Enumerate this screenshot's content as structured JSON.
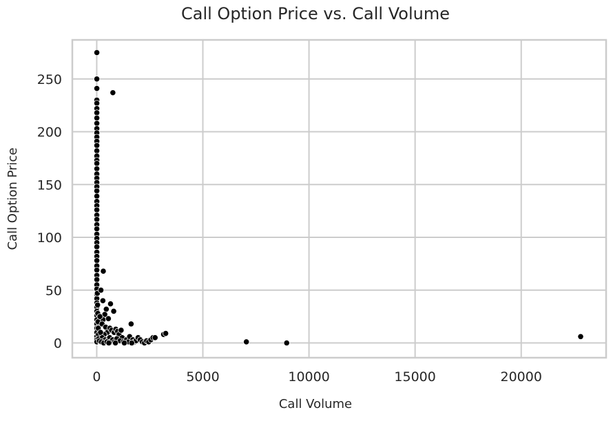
{
  "chart_data": {
    "type": "scatter",
    "title": "Call Option Price vs. Call Volume",
    "xlabel": "Call Volume",
    "ylabel": "Call Option Price",
    "xlim": [
      -1150,
      24000
    ],
    "ylim": [
      -14,
      287
    ],
    "xticks": [
      0,
      5000,
      10000,
      15000,
      20000
    ],
    "yticks": [
      0,
      50,
      100,
      150,
      200,
      250
    ],
    "xtick_labels": [
      "0",
      "5000",
      "10000",
      "15000",
      "20000"
    ],
    "ytick_labels": [
      "0",
      "50",
      "100",
      "150",
      "200",
      "250"
    ],
    "grid": true,
    "legend": "none",
    "colors": {
      "point": "#000000",
      "point_edge": "#ffffff",
      "grid": "#cccccc",
      "frame": "#cccccc"
    },
    "points": [
      [
        5,
        275
      ],
      [
        5,
        250
      ],
      [
        5,
        241
      ],
      [
        760,
        237
      ],
      [
        5,
        230
      ],
      [
        5,
        227
      ],
      [
        5,
        222
      ],
      [
        5,
        218
      ],
      [
        5,
        213
      ],
      [
        5,
        208
      ],
      [
        5,
        203
      ],
      [
        5,
        199
      ],
      [
        5,
        195
      ],
      [
        5,
        191
      ],
      [
        5,
        187
      ],
      [
        5,
        182
      ],
      [
        5,
        177
      ],
      [
        5,
        173
      ],
      [
        5,
        170
      ],
      [
        5,
        165
      ],
      [
        5,
        160
      ],
      [
        5,
        156
      ],
      [
        5,
        152
      ],
      [
        5,
        148
      ],
      [
        5,
        144
      ],
      [
        5,
        139
      ],
      [
        5,
        134
      ],
      [
        5,
        130
      ],
      [
        5,
        126
      ],
      [
        5,
        121
      ],
      [
        5,
        117
      ],
      [
        5,
        112
      ],
      [
        5,
        108
      ],
      [
        5,
        103
      ],
      [
        5,
        99
      ],
      [
        5,
        95
      ],
      [
        5,
        91
      ],
      [
        5,
        86
      ],
      [
        5,
        82
      ],
      [
        5,
        78
      ],
      [
        5,
        73
      ],
      [
        5,
        69
      ],
      [
        5,
        64
      ],
      [
        5,
        60
      ],
      [
        5,
        55
      ],
      [
        5,
        51
      ],
      [
        5,
        46
      ],
      [
        5,
        42
      ],
      [
        5,
        38
      ],
      [
        5,
        34
      ],
      [
        5,
        30
      ],
      [
        5,
        26
      ],
      [
        5,
        22
      ],
      [
        5,
        18
      ],
      [
        5,
        14
      ],
      [
        5,
        10
      ],
      [
        5,
        6
      ],
      [
        5,
        3
      ],
      [
        5,
        1
      ],
      [
        30,
        47
      ],
      [
        40,
        36
      ],
      [
        50,
        28
      ],
      [
        60,
        20
      ],
      [
        70,
        14
      ],
      [
        80,
        8
      ],
      [
        90,
        4
      ],
      [
        310,
        68
      ],
      [
        200,
        50
      ],
      [
        290,
        40
      ],
      [
        650,
        37
      ],
      [
        800,
        30
      ],
      [
        450,
        32
      ],
      [
        380,
        27
      ],
      [
        300,
        22
      ],
      [
        150,
        25
      ],
      [
        250,
        18
      ],
      [
        550,
        23
      ],
      [
        420,
        15
      ],
      [
        500,
        10
      ],
      [
        620,
        14
      ],
      [
        700,
        12
      ],
      [
        820,
        10
      ],
      [
        900,
        13
      ],
      [
        980,
        11
      ],
      [
        1050,
        8
      ],
      [
        1150,
        12
      ],
      [
        1200,
        5
      ],
      [
        350,
        8
      ],
      [
        180,
        10
      ],
      [
        260,
        5
      ],
      [
        400,
        3
      ],
      [
        520,
        2
      ],
      [
        610,
        5
      ],
      [
        680,
        1
      ],
      [
        750,
        3
      ],
      [
        830,
        1
      ],
      [
        950,
        4
      ],
      [
        1100,
        2
      ],
      [
        1250,
        1
      ],
      [
        1400,
        3
      ],
      [
        1500,
        1
      ],
      [
        1550,
        6
      ],
      [
        1620,
        18
      ],
      [
        1700,
        3
      ],
      [
        1780,
        1
      ],
      [
        1850,
        2
      ],
      [
        1950,
        5
      ],
      [
        2050,
        3
      ],
      [
        2150,
        1
      ],
      [
        2250,
        0
      ],
      [
        2350,
        2
      ],
      [
        2450,
        1
      ],
      [
        2550,
        3
      ],
      [
        2650,
        5
      ],
      [
        2750,
        5
      ],
      [
        3150,
        8
      ],
      [
        3250,
        9
      ],
      [
        7050,
        1
      ],
      [
        8950,
        0
      ],
      [
        22800,
        6
      ],
      [
        120,
        2
      ],
      [
        220,
        1
      ],
      [
        330,
        0
      ],
      [
        480,
        1
      ],
      [
        570,
        0
      ],
      [
        880,
        0
      ],
      [
        1300,
        0
      ],
      [
        1650,
        0
      ]
    ]
  }
}
